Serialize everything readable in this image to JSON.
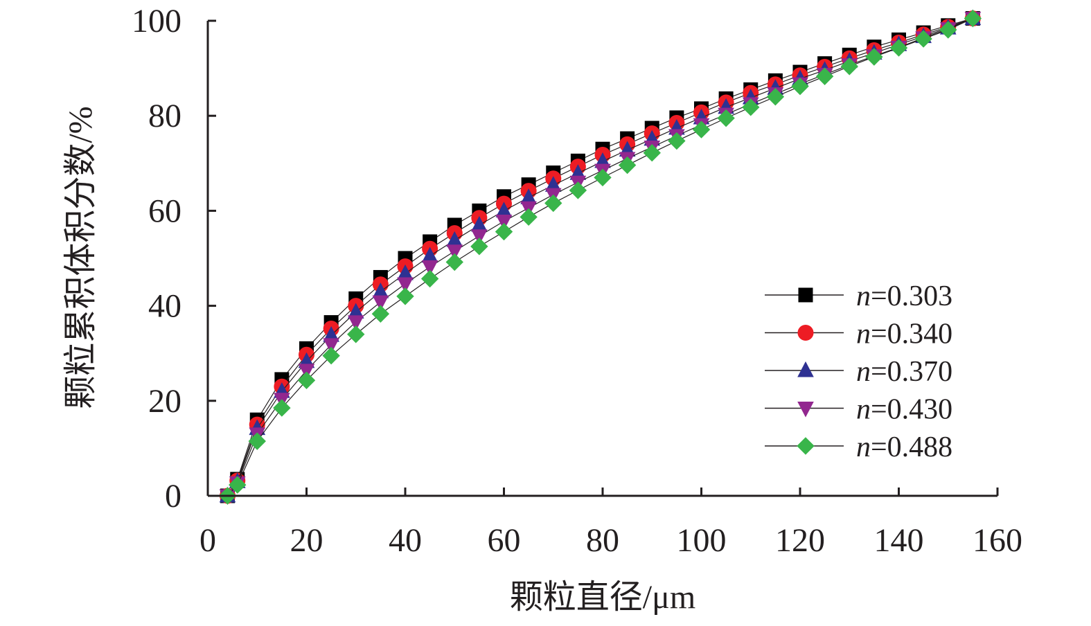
{
  "chart_data": {
    "type": "line",
    "xlabel": "颗粒直径/μm",
    "ylabel": "颗粒累积体积分数/%",
    "xlim": [
      0,
      160
    ],
    "ylim": [
      0,
      100
    ],
    "x_ticks": [
      "0",
      "20",
      "40",
      "60",
      "80",
      "100",
      "120",
      "140",
      "160"
    ],
    "y_ticks": [
      "0",
      "20",
      "40",
      "60",
      "80",
      "100"
    ],
    "grid": false,
    "legend_position": "bottom-right",
    "legend_prefix": "n",
    "x": [
      4,
      6,
      10,
      15,
      20,
      25,
      30,
      35,
      40,
      45,
      50,
      55,
      60,
      65,
      70,
      75,
      80,
      85,
      90,
      95,
      100,
      105,
      110,
      115,
      120,
      125,
      130,
      135,
      140,
      145,
      150,
      155
    ],
    "series": [
      {
        "name": "=0.303",
        "color": "#000000",
        "marker": "square",
        "values": [
          0,
          3.5,
          16,
          24.5,
          31,
          36.5,
          41.5,
          46,
          50,
          53.5,
          57,
          60,
          63,
          65.5,
          68,
          70.5,
          73,
          75.2,
          77.4,
          79.6,
          81.5,
          83.6,
          85.5,
          87.4,
          89.2,
          91,
          92.8,
          94.5,
          96,
          97.5,
          99,
          100.5
        ]
      },
      {
        "name": "=0.340",
        "color": "#ed1c24",
        "marker": "circle",
        "values": [
          0,
          3.2,
          15,
          23,
          29.7,
          35.2,
          40,
          44.5,
          48.3,
          52,
          55.3,
          58.5,
          61.5,
          64.2,
          66.8,
          69.3,
          71.8,
          74,
          76.3,
          78.5,
          80.7,
          82.8,
          84.8,
          86.6,
          88.5,
          90.3,
          92.1,
          93.8,
          95.4,
          97.1,
          98.7,
          100.5
        ]
      },
      {
        "name": "=0.370",
        "color": "#2e3192",
        "marker": "triangle-up",
        "values": [
          0,
          3,
          14.2,
          22,
          28.3,
          33.8,
          38.7,
          43,
          46.8,
          50.5,
          53.8,
          57,
          60,
          62.8,
          65.4,
          67.9,
          70.4,
          72.8,
          75.1,
          77.4,
          79.6,
          81.8,
          83.8,
          85.8,
          87.8,
          89.6,
          91.5,
          93.2,
          95,
          96.7,
          98.5,
          100.5
        ]
      },
      {
        "name": "=0.430",
        "color": "#92278f",
        "marker": "triangle-down",
        "values": [
          0,
          2.7,
          13,
          20.3,
          26.4,
          31.8,
          36.6,
          40.8,
          44.6,
          48.2,
          51.5,
          54.7,
          57.8,
          60.6,
          63.4,
          66,
          68.5,
          71,
          73.4,
          75.8,
          78.1,
          80.3,
          82.5,
          84.6,
          86.7,
          88.7,
          90.7,
          92.6,
          94.4,
          96.4,
          98.3,
          100.5
        ]
      },
      {
        "name": "=0.488",
        "color": "#39b54a",
        "marker": "diamond",
        "values": [
          0,
          2.3,
          11.5,
          18.5,
          24.3,
          29.5,
          34,
          38.3,
          42,
          45.7,
          49.2,
          52.5,
          55.6,
          58.7,
          61.6,
          64.3,
          67,
          69.6,
          72.2,
          74.7,
          77.1,
          79.5,
          81.8,
          84,
          86.2,
          88.3,
          90.4,
          92.4,
          94.3,
          96.2,
          98.1,
          100.5
        ]
      }
    ]
  }
}
